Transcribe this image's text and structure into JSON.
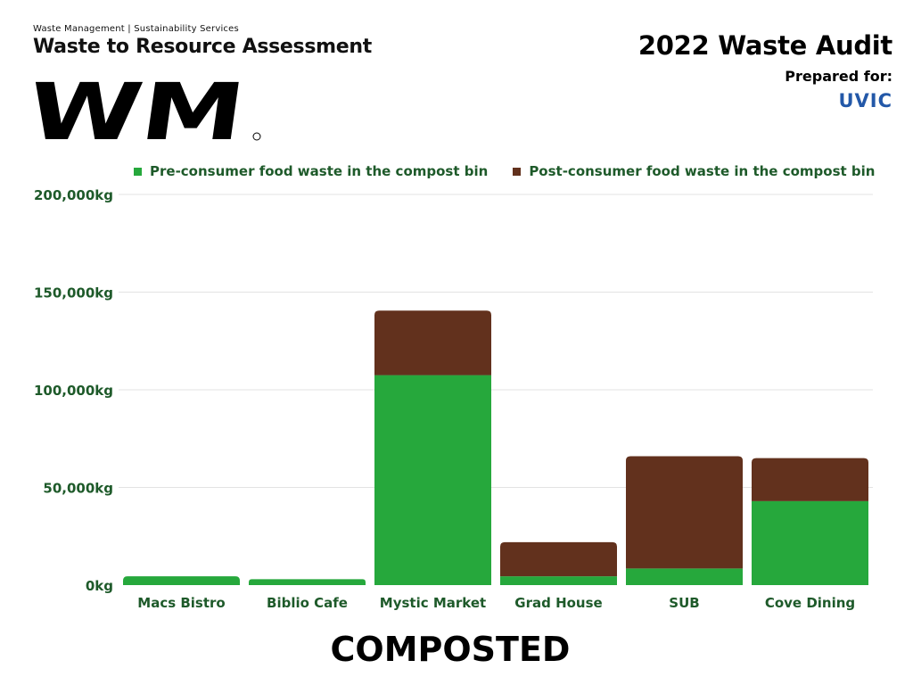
{
  "header": {
    "subtitle": "Waste Management | Sustainability Services",
    "title": "Waste to Resource Assessment",
    "audit_title": "2022 Waste Audit",
    "prepared_for": "Prepared for:",
    "client": "UVIC"
  },
  "colors": {
    "pre_consumer": "#26a83c",
    "post_consumer": "#62311d",
    "axis_text": "#1e5a2a",
    "grid": "#e3e3e3",
    "uvic_blue": "#2358a8"
  },
  "footer": {
    "title": "COMPOSTED"
  },
  "chart_data": {
    "type": "bar",
    "stacked": true,
    "categories": [
      "Macs Bistro",
      "Biblio Cafe",
      "Mystic Market",
      "Grad House",
      "SUB",
      "Cove Dining"
    ],
    "series": [
      {
        "name": "Pre-consumer food waste in the compost bin",
        "values": [
          4500,
          3000,
          107500,
          4500,
          8500,
          43000
        ]
      },
      {
        "name": "Post-consumer food waste in the compost bin",
        "values": [
          0,
          0,
          33000,
          17500,
          57500,
          22000
        ]
      }
    ],
    "y_ticks": [
      "0kg",
      "50,000kg",
      "100,000kg",
      "150,000kg",
      "200,000kg"
    ],
    "ylim": [
      0,
      200000
    ],
    "grid": true,
    "legend": "top"
  }
}
